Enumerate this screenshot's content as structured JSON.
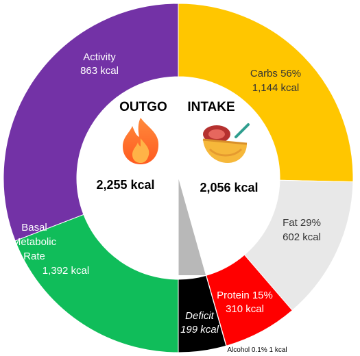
{
  "chart_data": {
    "type": "pie",
    "left_half": {
      "header": "OUTGO",
      "total": "2,255 kcal",
      "slices": [
        {
          "key": "activity",
          "label_lines": [
            "Activity",
            "863 kcal"
          ],
          "value": 863,
          "color": "#10bd5a"
        },
        {
          "key": "bmr",
          "label_lines": [
            "Basal",
            "Metabolic",
            "Rate",
            "",
            "1,392 kcal"
          ],
          "value": 1392,
          "color": "#7332a6"
        }
      ]
    },
    "right_half": {
      "header": "INTAKE",
      "total": "2,056 kcal",
      "slices": [
        {
          "key": "carbs",
          "label_lines": [
            "Carbs 56%",
            "1,144 kcal"
          ],
          "value": 1144,
          "color": "#ffc600"
        },
        {
          "key": "fat",
          "label_lines": [
            "Fat 29%",
            "602 kcal"
          ],
          "value": 602,
          "color": "#e8e8e8"
        },
        {
          "key": "protein",
          "label_lines": [
            "Protein 15%",
            "310 kcal"
          ],
          "value": 310,
          "color": "#ff0000"
        },
        {
          "key": "alcohol",
          "label_lines": [
            "Alcohol 0.1% 1 kcal"
          ],
          "value": 1,
          "color": "#aaaaaa"
        },
        {
          "key": "deficit",
          "label_lines": [
            "Deficit",
            "199 kcal"
          ],
          "value": 199,
          "color": "#000000"
        }
      ]
    }
  },
  "icons": {
    "outgo": "fire-icon",
    "intake": "food-bowl-icon"
  }
}
